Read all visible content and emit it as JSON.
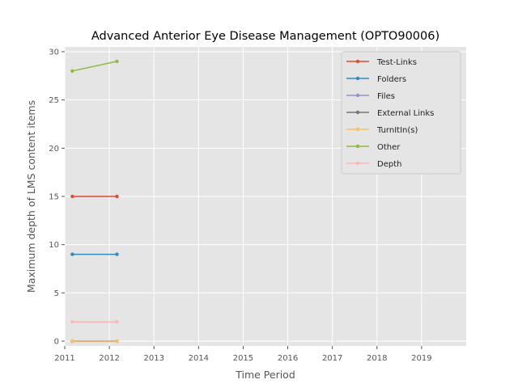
{
  "chart_data": {
    "type": "line",
    "title": "Advanced Anterior Eye Disease Management (OPTO90006)",
    "xlabel": "Time Period",
    "ylabel": "Maximum depth of LMS content items",
    "xlim": [
      2011,
      2020
    ],
    "ylim": [
      -0.5,
      30.5
    ],
    "x_ticks": [
      "2011",
      "2012",
      "2013",
      "2014",
      "2015",
      "2016",
      "2017",
      "2018",
      "2019"
    ],
    "y_ticks": [
      "0",
      "5",
      "10",
      "15",
      "20",
      "25",
      "30"
    ],
    "x_tick_values": [
      2011,
      2012,
      2013,
      2014,
      2015,
      2016,
      2017,
      2018,
      2019
    ],
    "y_tick_values": [
      0,
      5,
      10,
      15,
      20,
      25,
      30
    ],
    "grid": true,
    "legend_position": "top-right",
    "x": [
      2011.17,
      2012.17
    ],
    "series": [
      {
        "name": "Test-Links",
        "color": "#E24A33",
        "values": [
          15,
          15
        ]
      },
      {
        "name": "Folders",
        "color": "#348ABD",
        "values": [
          9,
          9
        ]
      },
      {
        "name": "Files",
        "color": "#988ED5",
        "values": [
          0,
          0
        ]
      },
      {
        "name": "External Links",
        "color": "#777777",
        "values": [
          0,
          0
        ]
      },
      {
        "name": "TurnItIn(s)",
        "color": "#FBC15E",
        "values": [
          0,
          0
        ]
      },
      {
        "name": "Other",
        "color": "#8EBA42",
        "values": [
          28,
          29
        ]
      },
      {
        "name": "Depth",
        "color": "#FFB5B8",
        "values": [
          2,
          2
        ]
      }
    ]
  }
}
